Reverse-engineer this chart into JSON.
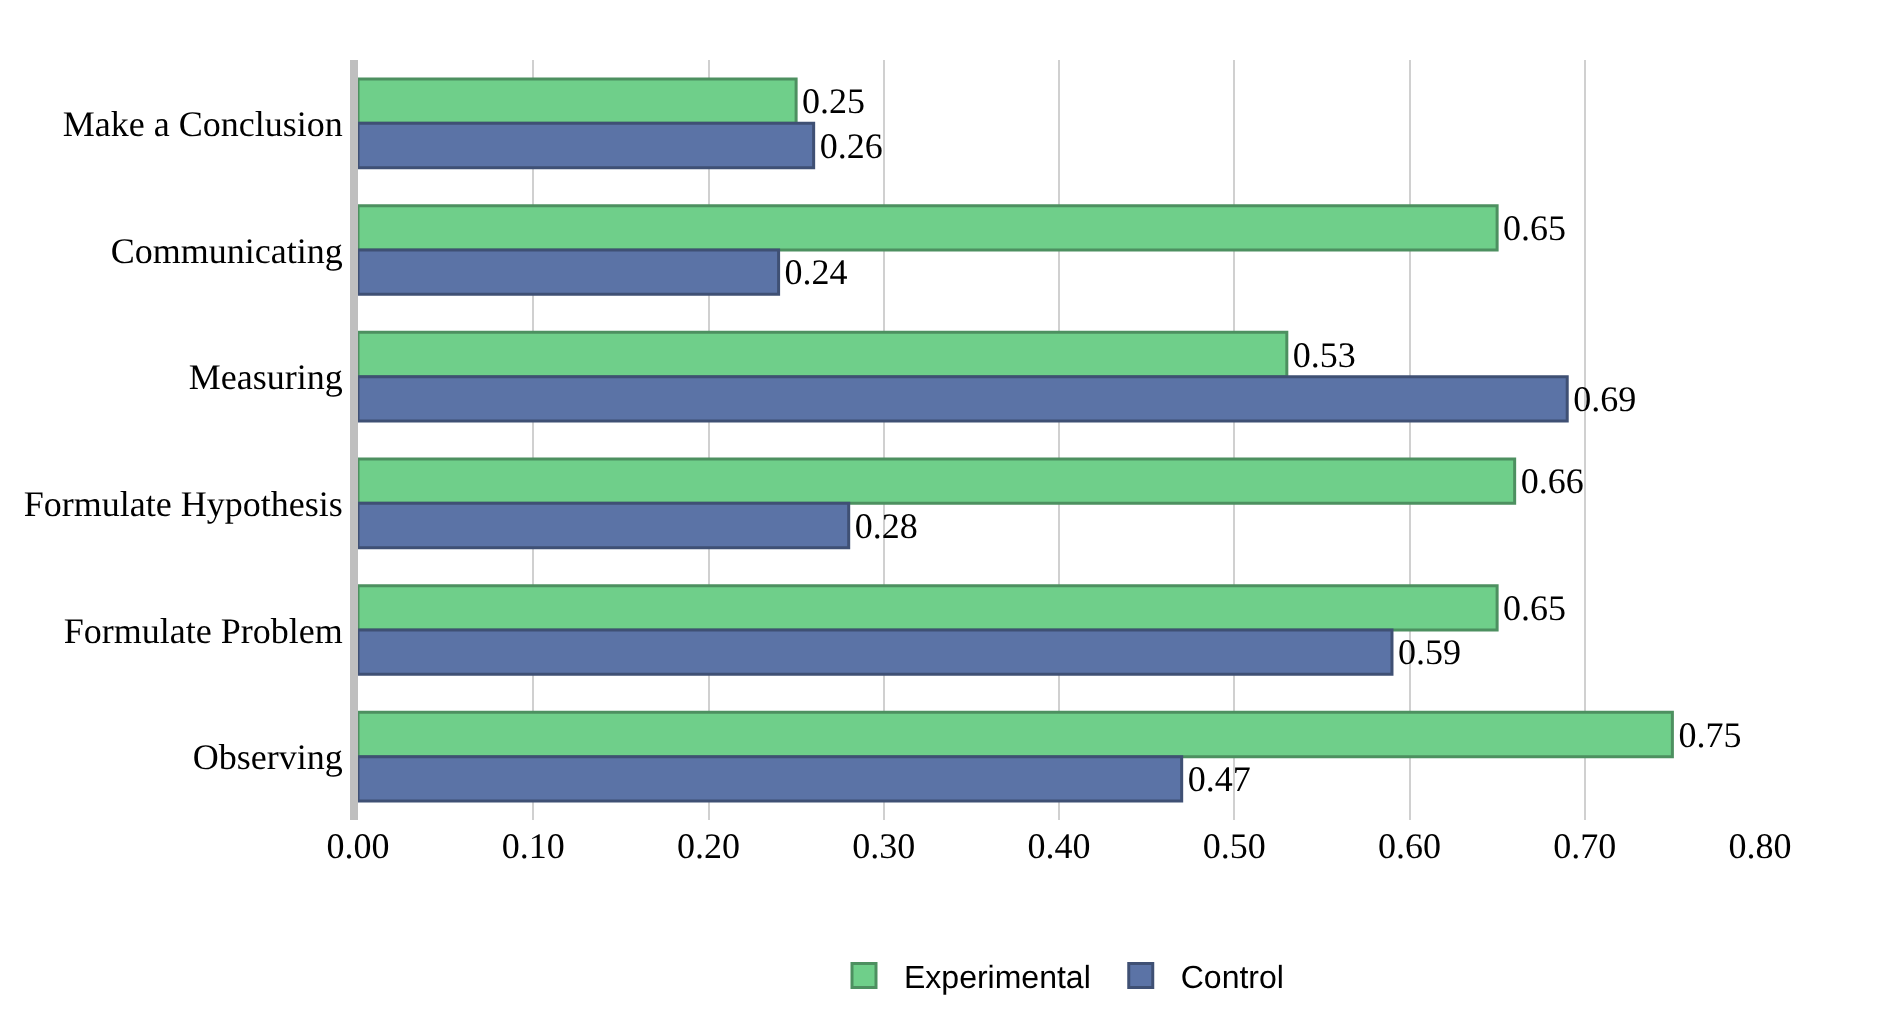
{
  "chart_data": {
    "type": "bar",
    "orientation": "horizontal",
    "categories": [
      "Make a Conclusion",
      "Communicating",
      "Measuring",
      "Formulate Hypothesis",
      "Formulate Problem",
      "Observing"
    ],
    "series": [
      {
        "name": "Experimental",
        "color": "#6fcf8a",
        "values": [
          0.25,
          0.65,
          0.53,
          0.66,
          0.65,
          0.75
        ]
      },
      {
        "name": "Control",
        "color": "#5b73a6",
        "values": [
          0.26,
          0.24,
          0.69,
          0.28,
          0.59,
          0.47
        ]
      }
    ],
    "xlim": [
      0,
      0.8
    ],
    "xticks": [
      {
        "value": 0,
        "label": "0.00"
      },
      {
        "value": 0.1,
        "label": "0.10"
      },
      {
        "value": 0.2,
        "label": "0.20"
      },
      {
        "value": 0.3,
        "label": "0.30"
      },
      {
        "value": 0.4,
        "label": "0.40"
      },
      {
        "value": 0.5,
        "label": "0.50"
      },
      {
        "value": 0.6,
        "label": "0.60"
      },
      {
        "value": 0.7,
        "label": "0.70"
      },
      {
        "value": 0.8,
        "label": "0.80"
      }
    ],
    "grid": "x",
    "legend": "bottom",
    "data_labels": true
  }
}
